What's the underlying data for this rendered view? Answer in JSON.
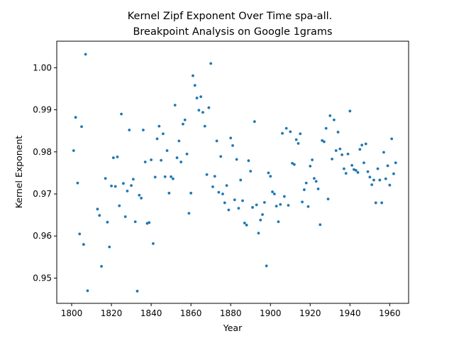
{
  "chart_data": {
    "type": "scatter",
    "title_line1": "Kernel Zipf Exponent Over Time spa-all.",
    "title_line2": "Breakpoint Analysis on Google 1grams",
    "xlabel": "Year",
    "ylabel": "Kernel Exponent",
    "xlim": [
      1792.5,
      1969.5
    ],
    "ylim": [
      0.944,
      1.0063
    ],
    "xticks": [
      1800,
      1820,
      1840,
      1860,
      1880,
      1900,
      1920,
      1940,
      1960
    ],
    "xtick_labels": [
      "1800",
      "1820",
      "1840",
      "1860",
      "1880",
      "1900",
      "1920",
      "1940",
      "1960"
    ],
    "yticks": [
      0.95,
      0.96,
      0.97,
      0.98,
      0.99,
      1.0
    ],
    "ytick_labels": [
      "0.95",
      "0.96",
      "0.97",
      "0.98",
      "0.99",
      "1.00"
    ],
    "marker_color": "#1f77b4",
    "grid": false,
    "points": [
      [
        1801,
        0.9803
      ],
      [
        1802,
        0.9882
      ],
      [
        1803,
        0.9726
      ],
      [
        1804,
        0.9605
      ],
      [
        1805,
        0.986
      ],
      [
        1806,
        0.958
      ],
      [
        1807,
        1.0032
      ],
      [
        1808,
        0.947
      ],
      [
        1813,
        0.9664
      ],
      [
        1814,
        0.9649
      ],
      [
        1815,
        0.9528
      ],
      [
        1817,
        0.9737
      ],
      [
        1818,
        0.9633
      ],
      [
        1819,
        0.9574
      ],
      [
        1820,
        0.9719
      ],
      [
        1821,
        0.9786
      ],
      [
        1822,
        0.9718
      ],
      [
        1823,
        0.9788
      ],
      [
        1824,
        0.9672
      ],
      [
        1825,
        0.989
      ],
      [
        1826,
        0.9725
      ],
      [
        1827,
        0.9646
      ],
      [
        1828,
        0.9707
      ],
      [
        1829,
        0.9852
      ],
      [
        1830,
        0.972
      ],
      [
        1831,
        0.9735
      ],
      [
        1832,
        0.9634
      ],
      [
        1833,
        0.9469
      ],
      [
        1834,
        0.9697
      ],
      [
        1835,
        0.969
      ],
      [
        1836,
        0.9852
      ],
      [
        1837,
        0.9776
      ],
      [
        1838,
        0.963
      ],
      [
        1839,
        0.9632
      ],
      [
        1840,
        0.9781
      ],
      [
        1841,
        0.9582
      ],
      [
        1842,
        0.974
      ],
      [
        1843,
        0.9831
      ],
      [
        1844,
        0.9861
      ],
      [
        1845,
        0.978
      ],
      [
        1846,
        0.9843
      ],
      [
        1847,
        0.9741
      ],
      [
        1848,
        0.9803
      ],
      [
        1849,
        0.9702
      ],
      [
        1850,
        0.9741
      ],
      [
        1851,
        0.9736
      ],
      [
        1852,
        0.9911
      ],
      [
        1853,
        0.9786
      ],
      [
        1854,
        0.9826
      ],
      [
        1855,
        0.9776
      ],
      [
        1856,
        0.9866
      ],
      [
        1857,
        0.9876
      ],
      [
        1858,
        0.9795
      ],
      [
        1859,
        0.9654
      ],
      [
        1860,
        0.9702
      ],
      [
        1861,
        0.9981
      ],
      [
        1862,
        0.9958
      ],
      [
        1863,
        0.9928
      ],
      [
        1864,
        0.9899
      ],
      [
        1865,
        0.9931
      ],
      [
        1866,
        0.9894
      ],
      [
        1867,
        0.9861
      ],
      [
        1868,
        0.9746
      ],
      [
        1869,
        0.9905
      ],
      [
        1870,
        1.001
      ],
      [
        1871,
        0.9717
      ],
      [
        1872,
        0.9742
      ],
      [
        1873,
        0.9826
      ],
      [
        1874,
        0.9704
      ],
      [
        1875,
        0.9789
      ],
      [
        1876,
        0.97
      ],
      [
        1877,
        0.9679
      ],
      [
        1878,
        0.972
      ],
      [
        1879,
        0.9662
      ],
      [
        1880,
        0.9833
      ],
      [
        1881,
        0.9815
      ],
      [
        1882,
        0.9686
      ],
      [
        1883,
        0.9782
      ],
      [
        1884,
        0.9666
      ],
      [
        1885,
        0.9733
      ],
      [
        1886,
        0.9684
      ],
      [
        1887,
        0.9631
      ],
      [
        1888,
        0.9626
      ],
      [
        1889,
        0.9779
      ],
      [
        1890,
        0.9754
      ],
      [
        1891,
        0.9668
      ],
      [
        1892,
        0.9872
      ],
      [
        1893,
        0.9674
      ],
      [
        1894,
        0.9607
      ],
      [
        1895,
        0.9638
      ],
      [
        1896,
        0.9651
      ],
      [
        1897,
        0.968
      ],
      [
        1898,
        0.9529
      ],
      [
        1899,
        0.975
      ],
      [
        1900,
        0.9742
      ],
      [
        1901,
        0.9705
      ],
      [
        1902,
        0.97
      ],
      [
        1903,
        0.9671
      ],
      [
        1904,
        0.9634
      ],
      [
        1905,
        0.9675
      ],
      [
        1906,
        0.9844
      ],
      [
        1907,
        0.9694
      ],
      [
        1908,
        0.9856
      ],
      [
        1909,
        0.9673
      ],
      [
        1910,
        0.9848
      ],
      [
        1911,
        0.9773
      ],
      [
        1912,
        0.977
      ],
      [
        1913,
        0.9829
      ],
      [
        1914,
        0.982
      ],
      [
        1915,
        0.9843
      ],
      [
        1916,
        0.9681
      ],
      [
        1917,
        0.971
      ],
      [
        1918,
        0.9726
      ],
      [
        1919,
        0.967
      ],
      [
        1920,
        0.9766
      ],
      [
        1921,
        0.9781
      ],
      [
        1922,
        0.9737
      ],
      [
        1923,
        0.973
      ],
      [
        1924,
        0.9712
      ],
      [
        1925,
        0.9627
      ],
      [
        1926,
        0.9827
      ],
      [
        1927,
        0.9824
      ],
      [
        1928,
        0.9856
      ],
      [
        1929,
        0.9688
      ],
      [
        1930,
        0.9886
      ],
      [
        1931,
        0.9783
      ],
      [
        1932,
        0.9876
      ],
      [
        1933,
        0.9803
      ],
      [
        1934,
        0.9847
      ],
      [
        1935,
        0.9807
      ],
      [
        1936,
        0.9793
      ],
      [
        1937,
        0.976
      ],
      [
        1938,
        0.9749
      ],
      [
        1939,
        0.9795
      ],
      [
        1940,
        0.9897
      ],
      [
        1941,
        0.9768
      ],
      [
        1942,
        0.9758
      ],
      [
        1943,
        0.9756
      ],
      [
        1944,
        0.9751
      ],
      [
        1945,
        0.9806
      ],
      [
        1946,
        0.9816
      ],
      [
        1947,
        0.9774
      ],
      [
        1948,
        0.9819
      ],
      [
        1949,
        0.9753
      ],
      [
        1950,
        0.974
      ],
      [
        1951,
        0.9722
      ],
      [
        1952,
        0.9733
      ],
      [
        1953,
        0.9679
      ],
      [
        1954,
        0.976
      ],
      [
        1955,
        0.9733
      ],
      [
        1956,
        0.9679
      ],
      [
        1957,
        0.9799
      ],
      [
        1958,
        0.9736
      ],
      [
        1959,
        0.9767
      ],
      [
        1960,
        0.9721
      ],
      [
        1961,
        0.9831
      ],
      [
        1962,
        0.9748
      ],
      [
        1963,
        0.9774
      ]
    ]
  }
}
